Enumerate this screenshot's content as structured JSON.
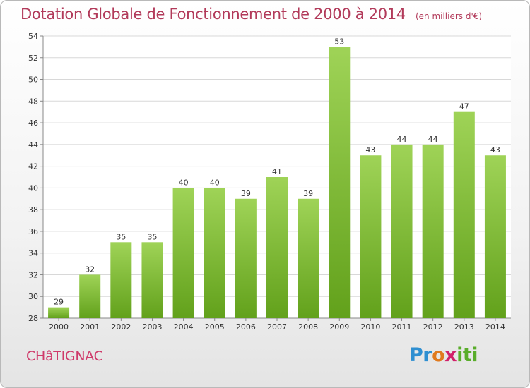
{
  "title": "Dotation Globale de Fonctionnement de 2000 à 2014",
  "unit": "(en milliers d'€)",
  "commune": "CHâTIGNAC",
  "logo": {
    "p1": "Pr",
    "p2": "o",
    "p3": "x",
    "p4": "iti"
  },
  "colors": {
    "bar_top": "#9fd357",
    "bar_bottom": "#62a11b",
    "title": "#b23a5a",
    "grid": "#d8d8d8"
  },
  "chart_data": {
    "type": "bar",
    "categories": [
      "2000",
      "2001",
      "2002",
      "2003",
      "2004",
      "2005",
      "2006",
      "2007",
      "2008",
      "2009",
      "2010",
      "2011",
      "2012",
      "2013",
      "2014"
    ],
    "values": [
      29,
      32,
      35,
      35,
      40,
      40,
      39,
      41,
      39,
      53,
      43,
      44,
      44,
      47,
      43
    ],
    "ylim": [
      28,
      54
    ],
    "yticks": [
      28,
      30,
      32,
      34,
      36,
      38,
      40,
      42,
      44,
      46,
      48,
      50,
      52,
      54
    ],
    "grid": true
  }
}
